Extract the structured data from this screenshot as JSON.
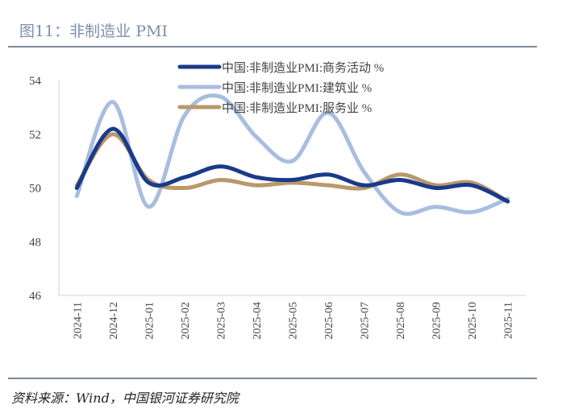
{
  "title": "图11：非制造业 PMI",
  "source": "资料来源：Wind，中国银河证券研究院",
  "chart_data": {
    "type": "line",
    "categories": [
      "2024-11",
      "2024-12",
      "2025-01",
      "2025-02",
      "2025-03",
      "2025-04",
      "2025-05",
      "2025-06",
      "2025-07",
      "2025-08",
      "2025-09",
      "2025-10",
      "2025-11"
    ],
    "ylim": [
      46,
      54
    ],
    "yticks": [
      46,
      48,
      50,
      52,
      54
    ],
    "legend": "top",
    "grid": false,
    "series": [
      {
        "name": "中国:非制造业PMI:商务活动 %",
        "color": "#1a3a8a",
        "values": [
          50.0,
          52.2,
          50.2,
          50.4,
          50.8,
          50.4,
          50.3,
          50.5,
          50.1,
          50.3,
          50.0,
          50.1,
          49.5
        ]
      },
      {
        "name": "中国:非制造业PMI:建筑业 %",
        "color": "#a9bde0",
        "values": [
          49.7,
          53.2,
          49.3,
          52.7,
          53.4,
          51.9,
          51.0,
          52.8,
          50.6,
          49.1,
          49.3,
          49.1,
          49.6
        ]
      },
      {
        "name": "中国:非制造业PMI:服务业 %",
        "color": "#b9986a",
        "values": [
          50.1,
          52.0,
          50.3,
          50.0,
          50.3,
          50.1,
          50.2,
          50.1,
          50.0,
          50.5,
          50.1,
          50.2,
          49.5
        ]
      }
    ]
  }
}
